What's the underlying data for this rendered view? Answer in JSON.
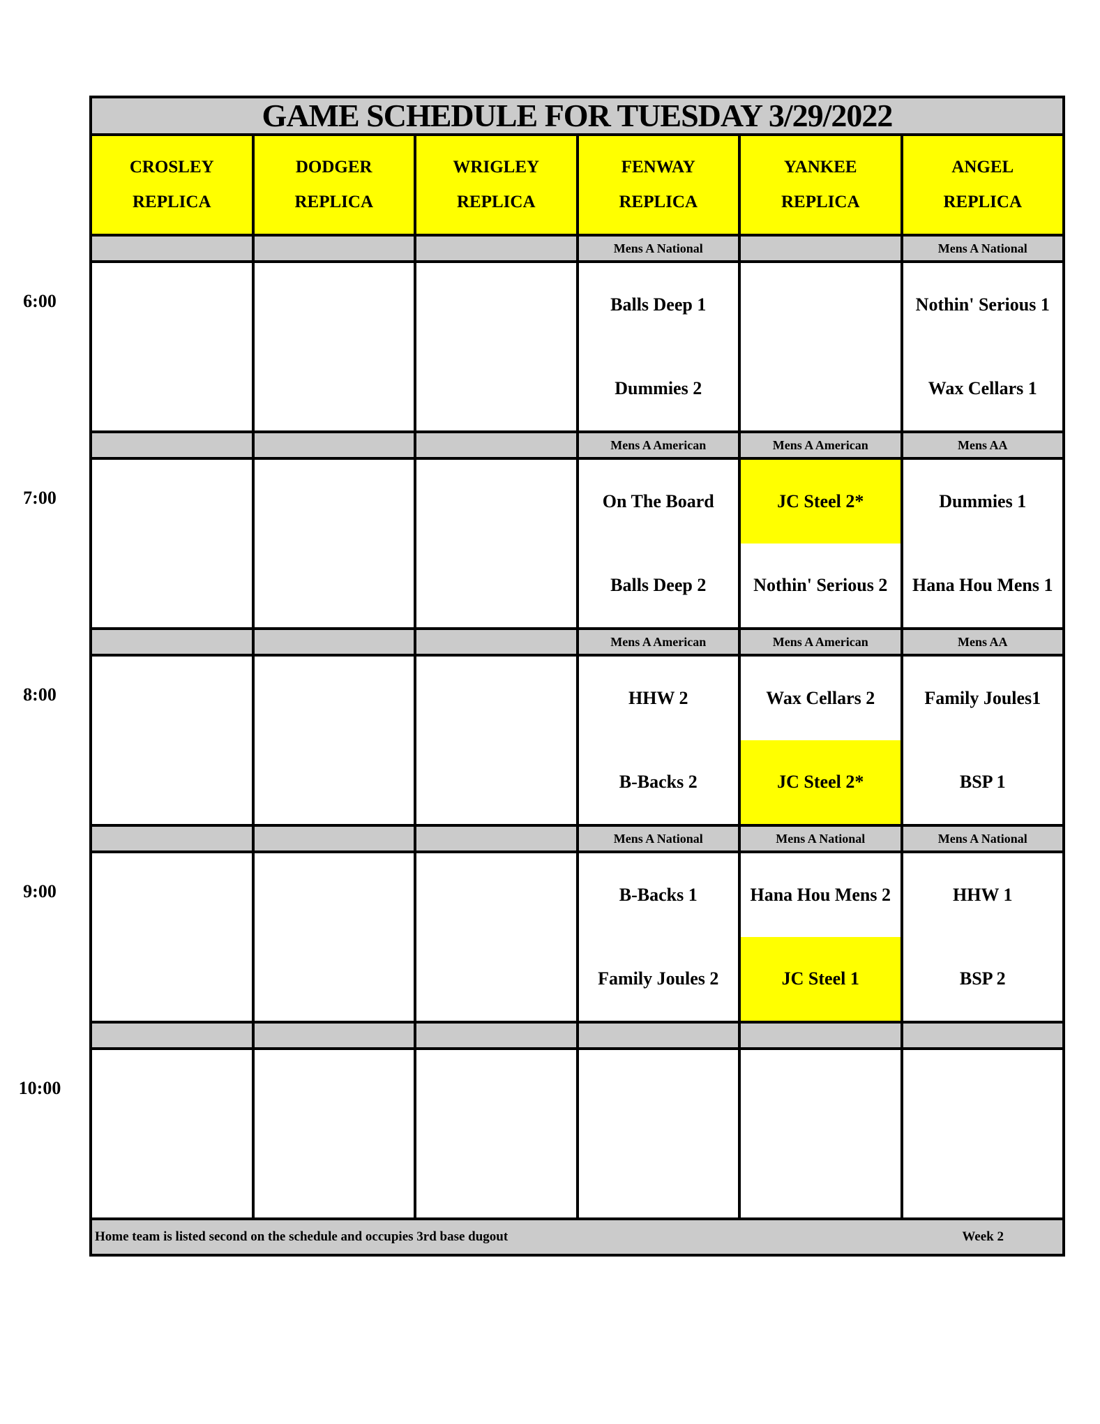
{
  "title": "GAME SCHEDULE FOR TUESDAY 3/29/2022",
  "fields": [
    {
      "name": "CROSLEY",
      "sub": "REPLICA"
    },
    {
      "name": "DODGER",
      "sub": "REPLICA"
    },
    {
      "name": "WRIGLEY",
      "sub": "REPLICA"
    },
    {
      "name": "FENWAY",
      "sub": "REPLICA"
    },
    {
      "name": "YANKEE",
      "sub": "REPLICA"
    },
    {
      "name": "ANGEL",
      "sub": "REPLICA"
    }
  ],
  "slots": [
    {
      "time": "6:00",
      "labels": [
        "",
        "",
        "",
        "Mens A National",
        "",
        "Mens A National"
      ],
      "games": [
        [],
        [],
        [],
        [
          {
            "team": "Balls Deep 1"
          },
          {
            "team": "Dummies 2"
          }
        ],
        [],
        [
          {
            "team": "Nothin' Serious 1"
          },
          {
            "team": "Wax Cellars 1"
          }
        ]
      ]
    },
    {
      "time": "7:00",
      "labels": [
        "",
        "",
        "",
        "Mens A American",
        "Mens A American",
        "Mens AA"
      ],
      "games": [
        [],
        [],
        [],
        [
          {
            "team": "On The Board"
          },
          {
            "team": "Balls Deep 2"
          }
        ],
        [
          {
            "team": "JC Steel 2*",
            "highlight": true
          },
          {
            "team": "Nothin' Serious 2"
          }
        ],
        [
          {
            "team": "Dummies 1"
          },
          {
            "team": "Hana Hou Mens 1"
          }
        ]
      ]
    },
    {
      "time": "8:00",
      "labels": [
        "",
        "",
        "",
        "Mens A American",
        "Mens A American",
        "Mens AA"
      ],
      "games": [
        [],
        [],
        [],
        [
          {
            "team": "HHW 2"
          },
          {
            "team": "B-Backs 2"
          }
        ],
        [
          {
            "team": "Wax Cellars 2"
          },
          {
            "team": "JC Steel 2*",
            "highlight": true
          }
        ],
        [
          {
            "team": "Family Joules1"
          },
          {
            "team": "BSP 1"
          }
        ]
      ]
    },
    {
      "time": "9:00",
      "labels": [
        "",
        "",
        "",
        "Mens A National",
        "Mens A National",
        "Mens A National"
      ],
      "games": [
        [],
        [],
        [],
        [
          {
            "team": "B-Backs 1"
          },
          {
            "team": "Family Joules 2"
          }
        ],
        [
          {
            "team": "Hana Hou Mens 2"
          },
          {
            "team": "JC Steel 1",
            "highlight": true
          }
        ],
        [
          {
            "team": "HHW 1"
          },
          {
            "team": "BSP 2"
          }
        ]
      ]
    },
    {
      "time": "10:00",
      "labels": [
        "",
        "",
        "",
        "",
        "",
        ""
      ],
      "games": [
        [],
        [],
        [],
        [],
        [],
        []
      ]
    }
  ],
  "footer": {
    "note": "Home team is listed second on the schedule and occupies 3rd base dugout",
    "week": "Week 2"
  },
  "colors": {
    "highlight": "#ffff00",
    "band": "#cbcbcb"
  }
}
